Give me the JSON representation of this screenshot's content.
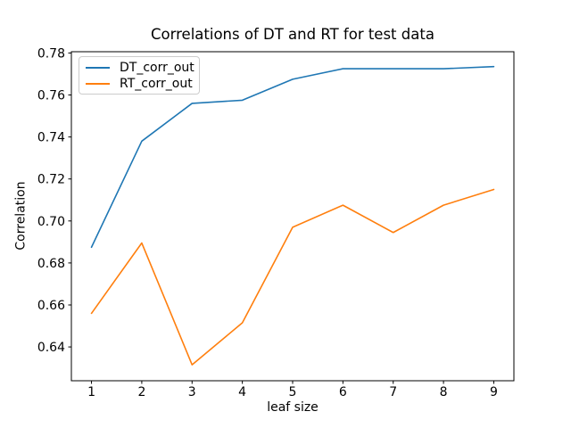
{
  "chart_data": {
    "type": "line",
    "title": "Correlations of DT and RT for test data",
    "xlabel": "leaf size",
    "ylabel": "Correlation",
    "x": [
      1,
      2,
      3,
      4,
      5,
      6,
      7,
      8,
      9
    ],
    "series": [
      {
        "name": "DT_corr_out",
        "color": "#1f77b4",
        "values": [
          0.6875,
          0.738,
          0.756,
          0.7575,
          0.7675,
          0.7725,
          0.7725,
          0.7725,
          0.7735
        ]
      },
      {
        "name": "RT_corr_out",
        "color": "#ff7f0e",
        "values": [
          0.656,
          0.6895,
          0.6315,
          0.6515,
          0.697,
          0.7075,
          0.6945,
          0.7075,
          0.715
        ]
      }
    ],
    "xticks": [
      1,
      2,
      3,
      4,
      5,
      6,
      7,
      8,
      9
    ],
    "xtick_labels": [
      "1",
      "2",
      "3",
      "4",
      "5",
      "6",
      "7",
      "8",
      "9"
    ],
    "yticks": [
      0.64,
      0.66,
      0.68,
      0.7,
      0.72,
      0.74,
      0.76,
      0.78
    ],
    "ytick_labels": [
      "0.64",
      "0.66",
      "0.68",
      "0.70",
      "0.72",
      "0.74",
      "0.76",
      "0.78"
    ],
    "xlim": [
      0.6,
      9.4
    ],
    "ylim": [
      0.6239,
      0.7806
    ],
    "grid": false,
    "legend_position": "upper left",
    "background_color": "#ffffff",
    "axis_color": "#000000"
  }
}
